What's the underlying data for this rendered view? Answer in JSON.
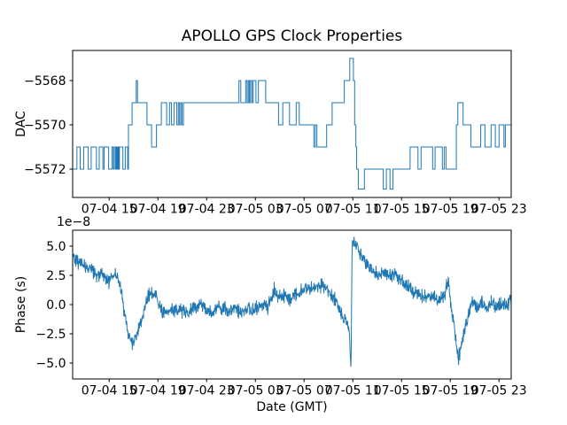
{
  "figure": {
    "background": "#ffffff",
    "line_color": "#1f77b4",
    "text_color": "#000000"
  },
  "chart_data": [
    {
      "type": "line",
      "subplot": "top",
      "title": "APOLLO GPS Clock Properties",
      "ylabel": "DAC",
      "ytick_values": [
        -5568,
        -5570,
        -5572
      ],
      "ytick_labels": [
        "−5568",
        "−5570",
        "−5572"
      ],
      "ylim": [
        -5573.28,
        -5566.64
      ],
      "xlim_hours": [
        0,
        36
      ],
      "xtick_hours": [
        3,
        7,
        11,
        15,
        19,
        23,
        27,
        31,
        35
      ],
      "xtick_labels": [
        "07-04 15",
        "07-04 19",
        "07-04 23",
        "07-05 03",
        "07-05 07",
        "07-05 11",
        "07-05 15",
        "07-05 19",
        "07-05 23"
      ],
      "grid": false,
      "legend": "none",
      "series": [
        {
          "name": "DAC",
          "style": "step",
          "points": [
            [
              0.0,
              -5572
            ],
            [
              0.35,
              -5571
            ],
            [
              0.62,
              -5572
            ],
            [
              0.9,
              -5571
            ],
            [
              1.28,
              -5572
            ],
            [
              1.52,
              -5571
            ],
            [
              1.95,
              -5572
            ],
            [
              2.18,
              -5571
            ],
            [
              2.48,
              -5572
            ],
            [
              2.58,
              -5571
            ],
            [
              2.95,
              -5572
            ],
            [
              3.22,
              -5571
            ],
            [
              3.33,
              -5572
            ],
            [
              3.42,
              -5571
            ],
            [
              3.52,
              -5572
            ],
            [
              3.6,
              -5571
            ],
            [
              3.66,
              -5572
            ],
            [
              3.71,
              -5571
            ],
            [
              3.77,
              -5572
            ],
            [
              3.84,
              -5571
            ],
            [
              4.12,
              -5572
            ],
            [
              4.32,
              -5571
            ],
            [
              4.52,
              -5572
            ],
            [
              4.58,
              -5570
            ],
            [
              4.88,
              -5569
            ],
            [
              5.22,
              -5568
            ],
            [
              5.32,
              -5569
            ],
            [
              6.1,
              -5570
            ],
            [
              6.48,
              -5571
            ],
            [
              6.88,
              -5570
            ],
            [
              7.28,
              -5569
            ],
            [
              7.72,
              -5570
            ],
            [
              7.95,
              -5569
            ],
            [
              8.12,
              -5570
            ],
            [
              8.32,
              -5569
            ],
            [
              8.55,
              -5570
            ],
            [
              8.68,
              -5569
            ],
            [
              8.78,
              -5570
            ],
            [
              8.88,
              -5569
            ],
            [
              8.98,
              -5570
            ],
            [
              9.1,
              -5569
            ],
            [
              13.65,
              -5568
            ],
            [
              13.8,
              -5569
            ],
            [
              14.2,
              -5568
            ],
            [
              14.32,
              -5569
            ],
            [
              14.42,
              -5568
            ],
            [
              14.52,
              -5569
            ],
            [
              14.6,
              -5568
            ],
            [
              14.72,
              -5569
            ],
            [
              14.82,
              -5568
            ],
            [
              15.05,
              -5569
            ],
            [
              15.25,
              -5568
            ],
            [
              15.85,
              -5569
            ],
            [
              16.9,
              -5570
            ],
            [
              17.25,
              -5569
            ],
            [
              17.8,
              -5570
            ],
            [
              18.35,
              -5569
            ],
            [
              18.6,
              -5570
            ],
            [
              19.8,
              -5571
            ],
            [
              19.92,
              -5570
            ],
            [
              20.05,
              -5571
            ],
            [
              20.85,
              -5570
            ],
            [
              21.3,
              -5569
            ],
            [
              22.3,
              -5568
            ],
            [
              22.75,
              -5567
            ],
            [
              23.05,
              -5568
            ],
            [
              23.15,
              -5570
            ],
            [
              23.25,
              -5571
            ],
            [
              23.32,
              -5572
            ],
            [
              23.45,
              -5572.9
            ],
            [
              23.95,
              -5572
            ],
            [
              25.5,
              -5572.9
            ],
            [
              25.75,
              -5572
            ],
            [
              26.05,
              -5572.9
            ],
            [
              26.3,
              -5572
            ],
            [
              27.7,
              -5571
            ],
            [
              28.35,
              -5572
            ],
            [
              28.6,
              -5571
            ],
            [
              29.55,
              -5572
            ],
            [
              29.75,
              -5571
            ],
            [
              30.35,
              -5572
            ],
            [
              30.5,
              -5571
            ],
            [
              30.65,
              -5572
            ],
            [
              31.5,
              -5570
            ],
            [
              31.62,
              -5569
            ],
            [
              32.05,
              -5570
            ],
            [
              32.7,
              -5571
            ],
            [
              33.5,
              -5570
            ],
            [
              33.85,
              -5571
            ],
            [
              34.35,
              -5570
            ],
            [
              34.7,
              -5571
            ],
            [
              35.0,
              -5570
            ],
            [
              35.4,
              -5571
            ],
            [
              35.52,
              -5570
            ]
          ]
        }
      ]
    },
    {
      "type": "line",
      "subplot": "bottom",
      "ylabel": "Phase (s)",
      "y_offset_text": "1e−8",
      "xlabel": "Date (GMT)",
      "ytick_values": [
        5.0,
        2.5,
        0.0,
        -2.5,
        -5.0
      ],
      "ytick_labels": [
        "5.0",
        "2.5",
        "0.0",
        "−2.5",
        "−5.0"
      ],
      "ylim": [
        -6.36,
        6.36
      ],
      "xlim_hours": [
        0,
        36
      ],
      "xtick_hours": [
        3,
        7,
        11,
        15,
        19,
        23,
        27,
        31,
        35
      ],
      "xtick_labels": [
        "07-04 15",
        "07-04 19",
        "07-04 23",
        "07-05 03",
        "07-05 07",
        "07-05 11",
        "07-05 15",
        "07-05 19",
        "07-05 23"
      ],
      "grid": false,
      "legend": "none",
      "series": [
        {
          "name": "Phase",
          "style": "noisy-line",
          "units": "1e-8 s",
          "noise_amplitude": 0.45,
          "samples": 1500,
          "seed": 42,
          "anchors": [
            [
              0,
              4.4
            ],
            [
              0.3,
              3.9
            ],
            [
              0.6,
              3.5
            ],
            [
              1.0,
              3.3
            ],
            [
              1.5,
              3.0
            ],
            [
              2.0,
              2.6
            ],
            [
              2.5,
              2.4
            ],
            [
              3.0,
              2.1
            ],
            [
              3.3,
              2.4
            ],
            [
              3.6,
              2.6
            ],
            [
              3.9,
              1.7
            ],
            [
              4.05,
              0.5
            ],
            [
              4.5,
              -2.2
            ],
            [
              4.9,
              -3.5
            ],
            [
              5.3,
              -2.4
            ],
            [
              5.7,
              -1.2
            ],
            [
              6.0,
              0.3
            ],
            [
              6.3,
              0.9
            ],
            [
              6.7,
              0.8
            ],
            [
              7.0,
              0.3
            ],
            [
              7.3,
              -0.5
            ],
            [
              7.7,
              -0.8
            ],
            [
              8.0,
              -0.4
            ],
            [
              8.5,
              -0.6
            ],
            [
              9.0,
              -0.3
            ],
            [
              9.5,
              -0.7
            ],
            [
              10.0,
              -0.2
            ],
            [
              10.5,
              0.1
            ],
            [
              11.0,
              -0.4
            ],
            [
              11.5,
              -0.7
            ],
            [
              11.8,
              -0.2
            ],
            [
              12.3,
              -0.3
            ],
            [
              12.8,
              -0.5
            ],
            [
              13.3,
              -0.4
            ],
            [
              13.8,
              -0.6
            ],
            [
              14.3,
              -0.3
            ],
            [
              14.8,
              -0.5
            ],
            [
              15.3,
              -0.2
            ],
            [
              15.8,
              0.0
            ],
            [
              16.2,
              0.2
            ],
            [
              16.5,
              1.0
            ],
            [
              16.8,
              0.6
            ],
            [
              17.3,
              0.8
            ],
            [
              17.8,
              0.5
            ],
            [
              18.3,
              0.9
            ],
            [
              18.8,
              1.2
            ],
            [
              19.3,
              1.4
            ],
            [
              19.8,
              1.5
            ],
            [
              20.3,
              1.6
            ],
            [
              20.7,
              1.5
            ],
            [
              21.0,
              1.1
            ],
            [
              21.4,
              0.6
            ],
            [
              21.8,
              -0.2
            ],
            [
              22.2,
              -1.2
            ],
            [
              22.5,
              -1.7
            ],
            [
              22.7,
              -2.1
            ],
            [
              22.85,
              -5.6
            ],
            [
              22.95,
              5.6
            ],
            [
              23.3,
              4.9
            ],
            [
              23.7,
              4.3
            ],
            [
              24.2,
              3.4
            ],
            [
              24.7,
              2.8
            ],
            [
              25.2,
              2.5
            ],
            [
              25.6,
              2.8
            ],
            [
              26.0,
              2.4
            ],
            [
              26.4,
              2.6
            ],
            [
              27.0,
              2.0
            ],
            [
              27.5,
              1.6
            ],
            [
              28.0,
              1.0
            ],
            [
              28.5,
              0.8
            ],
            [
              29.0,
              0.6
            ],
            [
              29.5,
              0.7
            ],
            [
              30.0,
              0.5
            ],
            [
              30.5,
              0.7
            ],
            [
              30.85,
              2.3
            ],
            [
              31.1,
              -0.5
            ],
            [
              31.4,
              -2.5
            ],
            [
              31.65,
              -4.7
            ],
            [
              32.0,
              -3.0
            ],
            [
              32.4,
              -1.2
            ],
            [
              32.8,
              0.3
            ],
            [
              33.2,
              -0.3
            ],
            [
              33.6,
              0.1
            ],
            [
              34.0,
              -0.4
            ],
            [
              34.4,
              0.2
            ],
            [
              34.8,
              -0.2
            ],
            [
              35.3,
              0.1
            ],
            [
              35.7,
              -0.1
            ],
            [
              36.0,
              0.5
            ]
          ]
        }
      ]
    }
  ]
}
